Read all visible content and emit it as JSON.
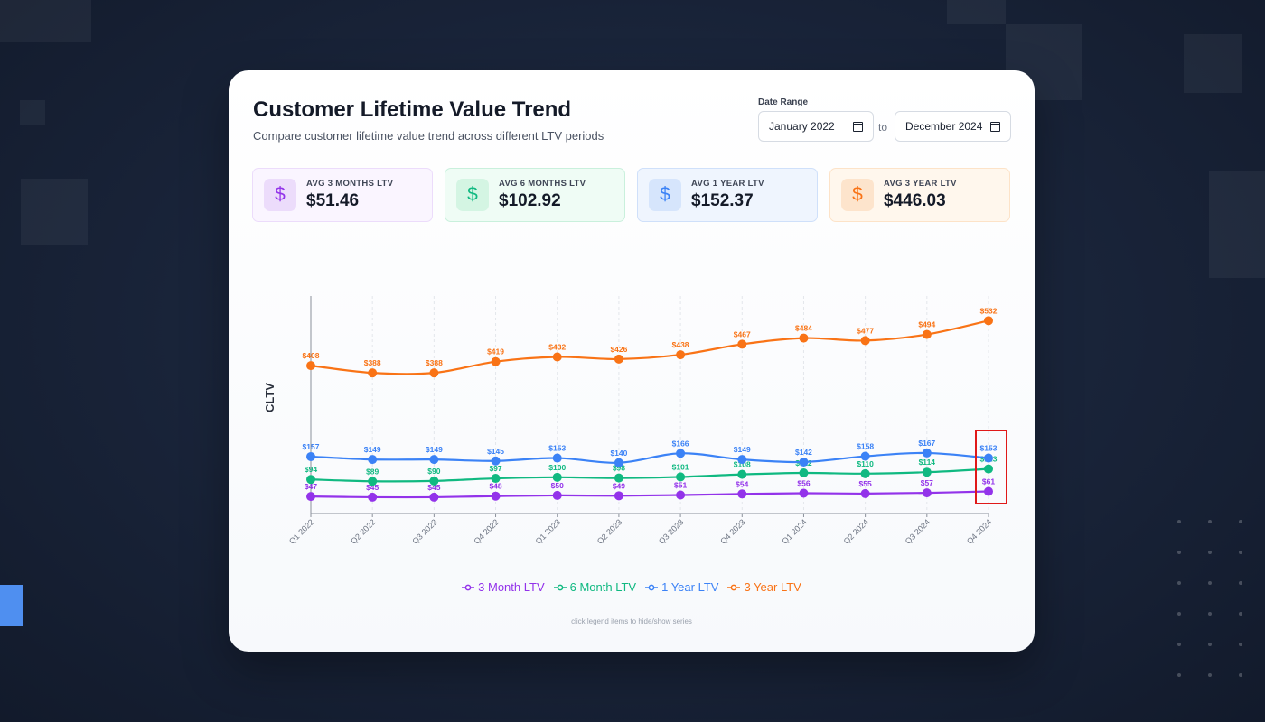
{
  "header": {
    "title": "Customer Lifetime Value Trend",
    "subtitle": "Compare customer lifetime value trend across different LTV periods"
  },
  "date_range": {
    "label": "Date Range",
    "start": "January 2022",
    "separator": "to",
    "end": "December 2024"
  },
  "kpis": [
    {
      "label": "AVG 3 MONTHS LTV",
      "value": "$51.46",
      "icon": "dollar-icon",
      "color": "#9333ea"
    },
    {
      "label": "AVG 6 MONTHS LTV",
      "value": "$102.92",
      "icon": "dollar-icon",
      "color": "#10b981"
    },
    {
      "label": "AVG 1 YEAR LTV",
      "value": "$152.37",
      "icon": "dollar-icon",
      "color": "#3b82f6"
    },
    {
      "label": "AVG 3 YEAR LTV",
      "value": "$446.03",
      "icon": "dollar-icon",
      "color": "#f97316"
    }
  ],
  "chart_data": {
    "type": "line",
    "ylabel": "CLTV",
    "x": [
      "Q1 2022",
      "Q2 2022",
      "Q3 2022",
      "Q4 2022",
      "Q1 2023",
      "Q2 2023",
      "Q3 2023",
      "Q4 2023",
      "Q1 2024",
      "Q2 2024",
      "Q3 2024",
      "Q4 2024"
    ],
    "series": [
      {
        "name": "3 Month LTV",
        "color": "#9333ea",
        "values": [
          47,
          45,
          45,
          48,
          50,
          49,
          51,
          54,
          56,
          55,
          57,
          61
        ]
      },
      {
        "name": "6 Month LTV",
        "color": "#10b981",
        "values": [
          94,
          89,
          90,
          97,
          100,
          98,
          101,
          108,
          112,
          110,
          114,
          123
        ]
      },
      {
        "name": "1 Year LTV",
        "color": "#3b82f6",
        "values": [
          157,
          149,
          149,
          145,
          153,
          140,
          166,
          149,
          142,
          158,
          167,
          153
        ]
      },
      {
        "name": "3 Year LTV",
        "color": "#f97316",
        "values": [
          408,
          388,
          388,
          419,
          432,
          426,
          438,
          467,
          484,
          477,
          494,
          532
        ]
      }
    ],
    "ylim": [
      0,
      600
    ],
    "grid": "vertical-dashed",
    "legend_position": "bottom"
  },
  "hint": "click legend items to hide/show series"
}
